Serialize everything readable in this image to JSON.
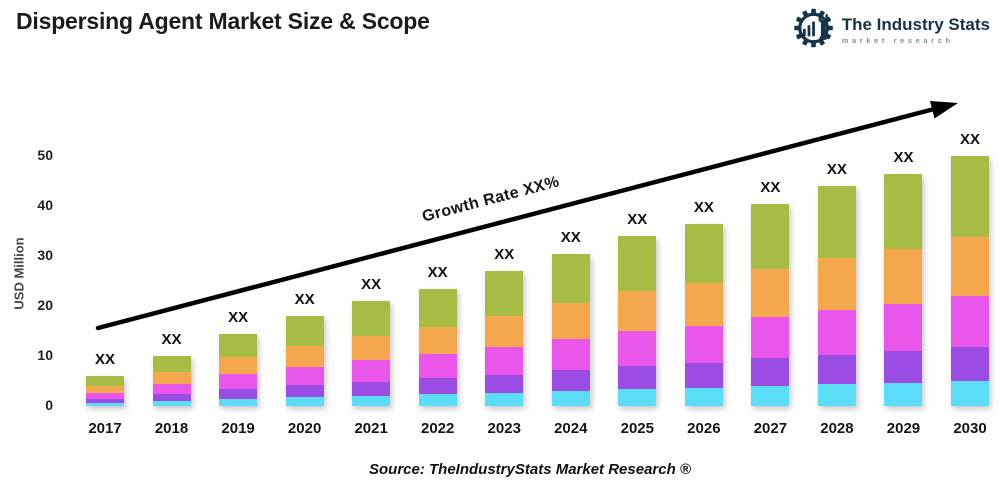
{
  "header": {
    "title": "Dispersing Agent Market Size & Scope"
  },
  "logo": {
    "name": "The Industry Stats",
    "subtitle": "market research",
    "color": "#16334a",
    "subtitle_color": "#7d92a2"
  },
  "source": "Source: TheIndustryStats Market Research ®",
  "chart_data": {
    "type": "bar",
    "stacked": true,
    "title": "Dispersing Agent Market Size & Scope",
    "xlabel": "",
    "ylabel": "USD Million",
    "categories": [
      "2017",
      "2018",
      "2019",
      "2020",
      "2021",
      "2022",
      "2023",
      "2024",
      "2025",
      "2026",
      "2027",
      "2028",
      "2029",
      "2030"
    ],
    "yticks": [
      0,
      10,
      20,
      30,
      40,
      50
    ],
    "ylim": [
      0,
      55
    ],
    "grid": false,
    "legend": "none",
    "bar_value_label": "XX",
    "totals_estimated": [
      6,
      10,
      14.5,
      18,
      21,
      23.5,
      27,
      30.5,
      34,
      36.5,
      40.5,
      44,
      46.5,
      50
    ],
    "series": [
      {
        "name": "segment-cyan-bottom",
        "color": "#5bdcf7",
        "values": [
          0.6,
          1.0,
          1.5,
          1.8,
          2.1,
          2.4,
          2.7,
          3.1,
          3.4,
          3.7,
          4.1,
          4.4,
          4.7,
          5.0
        ]
      },
      {
        "name": "segment-purple",
        "color": "#9a4ce4",
        "values": [
          0.8,
          1.4,
          2.0,
          2.4,
          2.8,
          3.2,
          3.6,
          4.1,
          4.6,
          4.9,
          5.5,
          5.9,
          6.3,
          6.8
        ]
      },
      {
        "name": "segment-magenta",
        "color": "#e956e9",
        "values": [
          1.2,
          2.1,
          3.0,
          3.7,
          4.3,
          4.8,
          5.5,
          6.3,
          7.0,
          7.5,
          8.3,
          9.0,
          9.5,
          10.3
        ]
      },
      {
        "name": "segment-orange",
        "color": "#f4a74d",
        "values": [
          1.4,
          2.4,
          3.4,
          4.2,
          4.9,
          5.5,
          6.3,
          7.2,
          8.0,
          8.6,
          9.5,
          10.3,
          10.9,
          11.7
        ]
      },
      {
        "name": "segment-green-top",
        "color": "#a6bc45",
        "values": [
          2.0,
          3.1,
          4.6,
          5.9,
          6.9,
          7.6,
          8.9,
          9.8,
          11.0,
          11.8,
          13.1,
          14.4,
          15.1,
          16.2
        ]
      }
    ],
    "annotation": {
      "text": "Growth Rate XX%",
      "type": "trend-arrow",
      "arrow_color": "#000000"
    }
  }
}
